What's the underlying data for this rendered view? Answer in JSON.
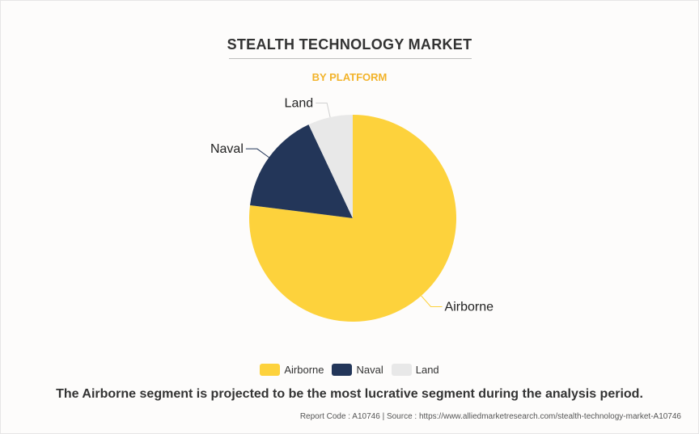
{
  "title": "STEALTH TECHNOLOGY MARKET",
  "subtitle": "BY PLATFORM",
  "caption": "The Airborne segment is projected to be the most lucrative segment during the analysis period.",
  "footer": "Report Code : A10746  |  Source : https://www.alliedmarketresearch.com/stealth-technology-market-A10746",
  "chart_data": {
    "type": "pie",
    "title": "STEALTH TECHNOLOGY MARKET",
    "subtitle": "BY PLATFORM",
    "legend_position": "bottom",
    "slices": [
      {
        "label": "Airborne",
        "value": 77,
        "color": "#fdd23c"
      },
      {
        "label": "Naval",
        "value": 16,
        "color": "#233659"
      },
      {
        "label": "Land",
        "value": 7,
        "color": "#e8e8e8"
      }
    ]
  }
}
